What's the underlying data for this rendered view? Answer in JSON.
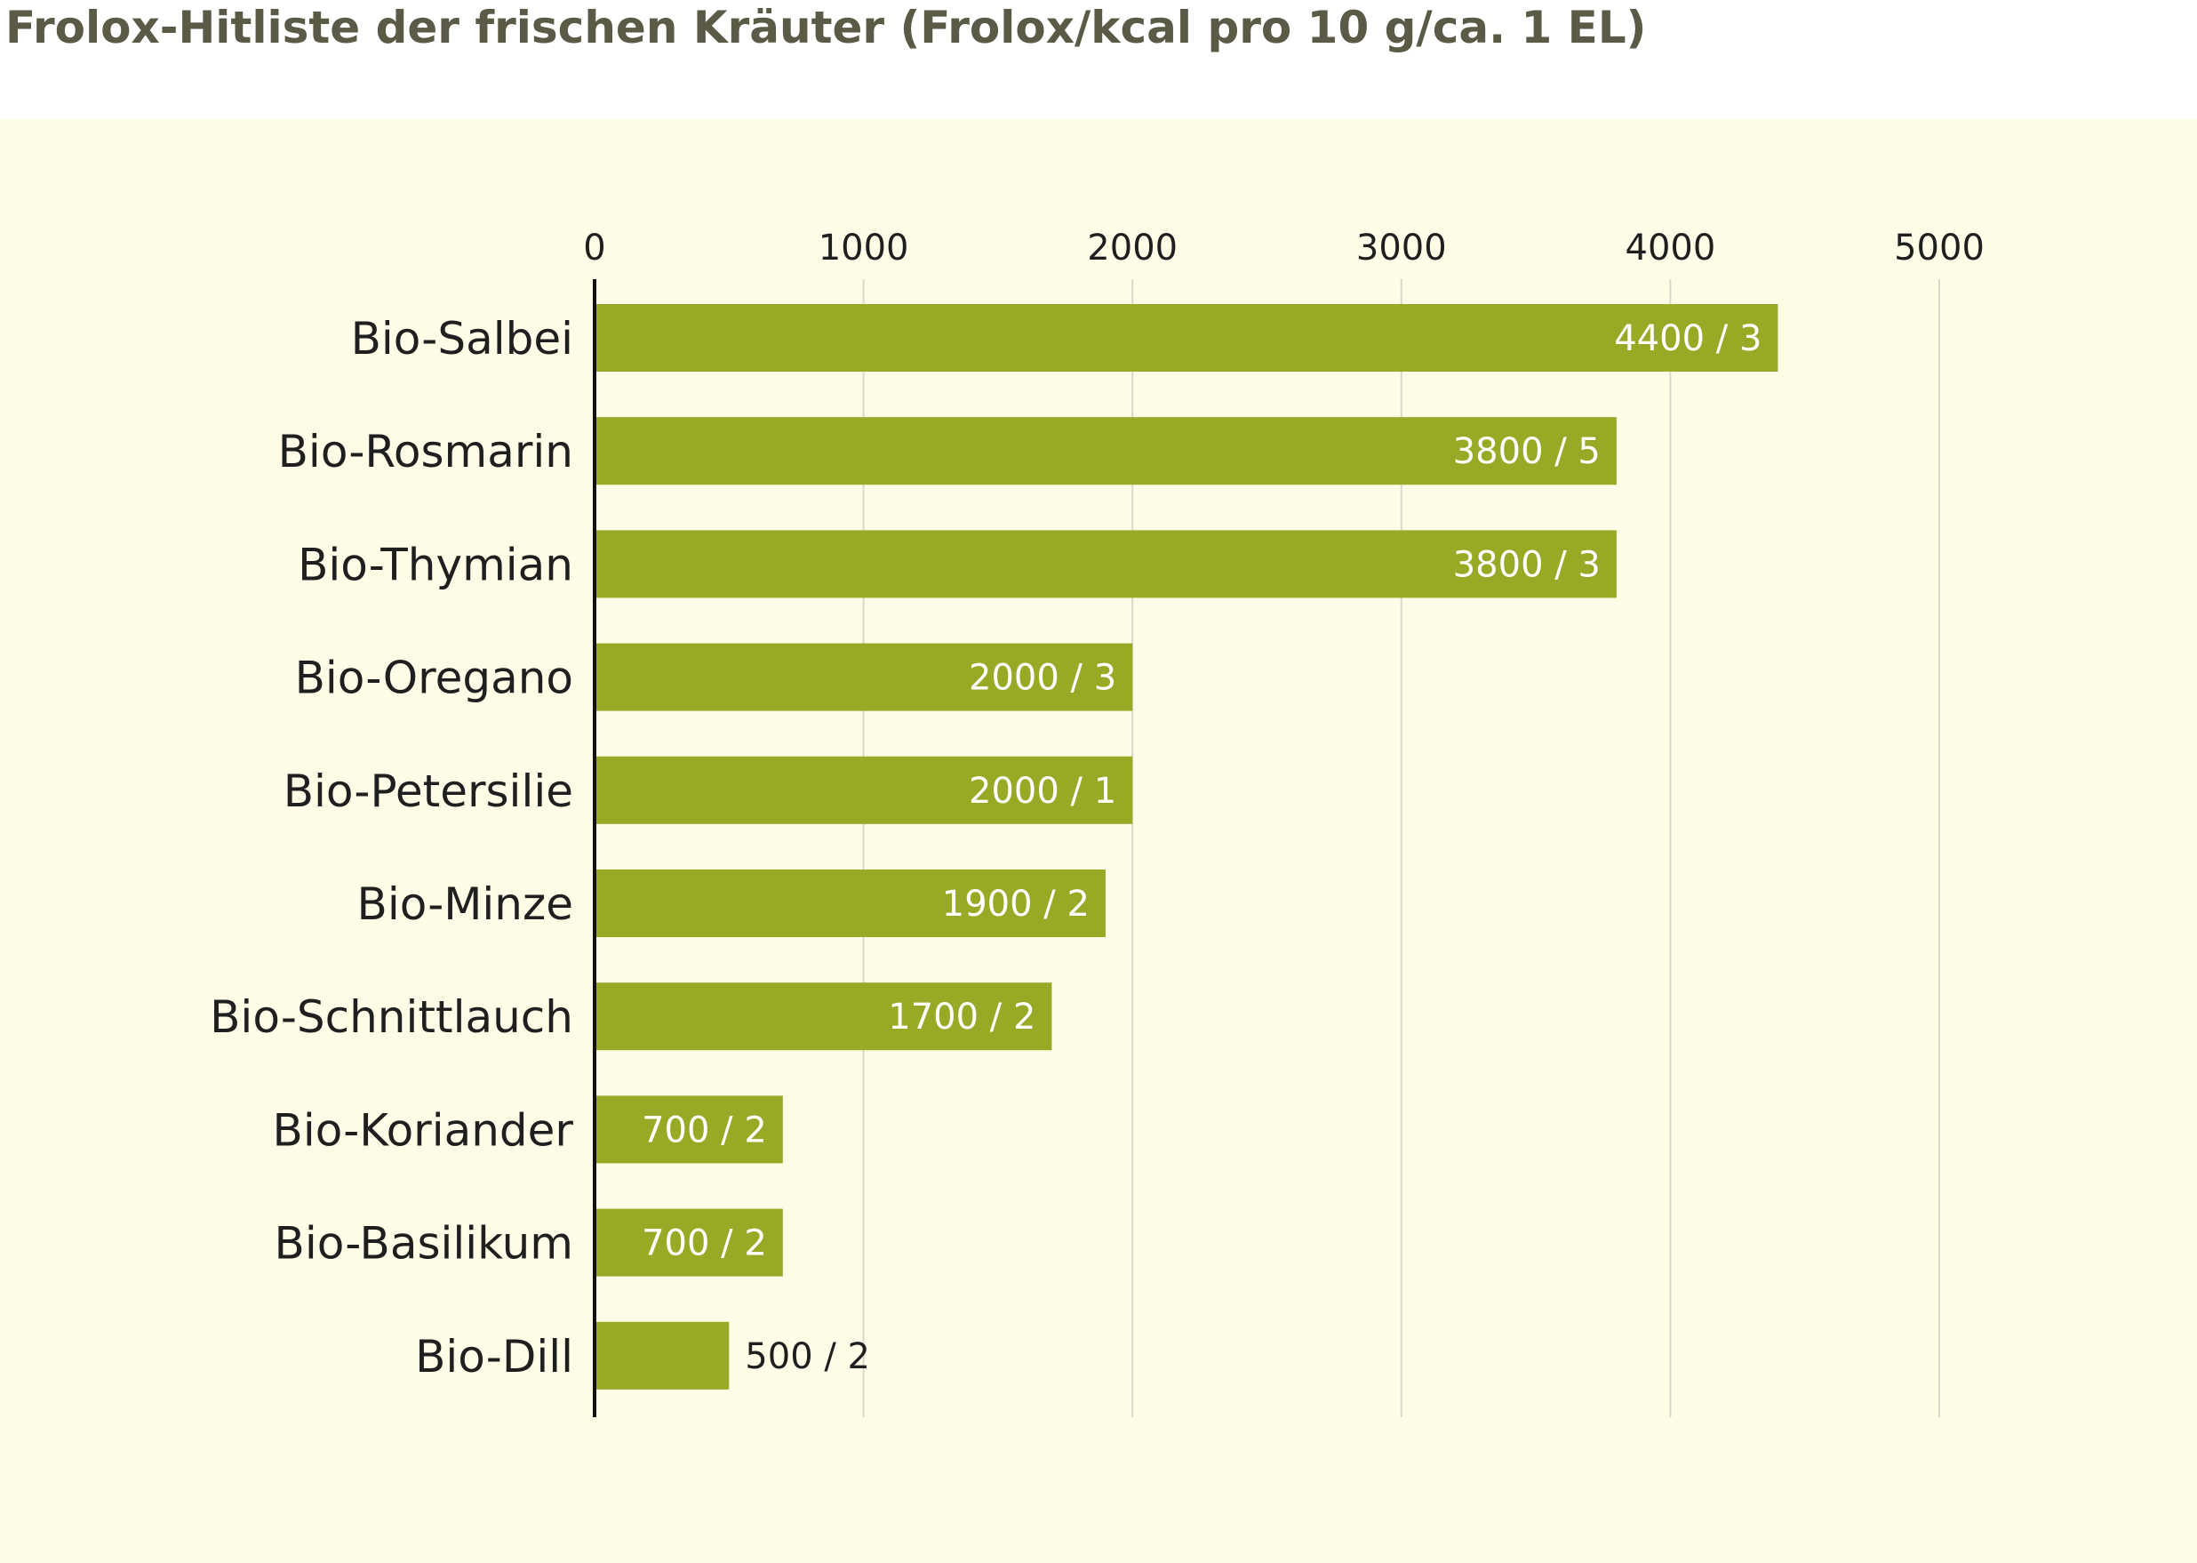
{
  "title": "Frolox-Hitliste der frischen Kräuter (Frolox/kcal pro 10 g/ca. 1 EL)",
  "colors": {
    "bar": "#98a925",
    "panel": "#fefbe7",
    "grid": "#d9d8cc",
    "title": "#5a5a46"
  },
  "chart_data": {
    "type": "bar",
    "orientation": "horizontal",
    "title": "Frolox-Hitliste der frischen Kräuter (Frolox/kcal pro 10 g/ca. 1 EL)",
    "categories": [
      "Bio-Salbei",
      "Bio-Rosmarin",
      "Bio-Thymian",
      "Bio-Oregano",
      "Bio-Petersilie",
      "Bio-Minze",
      "Bio-Schnittlauch",
      "Bio-Koriander",
      "Bio-Basilikum",
      "Bio-Dill"
    ],
    "values": [
      4400,
      3800,
      3800,
      2000,
      2000,
      1900,
      1700,
      700,
      700,
      500
    ],
    "kcal": [
      3,
      5,
      3,
      3,
      1,
      2,
      2,
      2,
      2,
      2
    ],
    "data_labels": [
      "4400 / 3",
      "3800 / 5",
      "3800 / 3",
      "2000 / 3",
      "2000 / 1",
      "1900 / 2",
      "1700 / 2",
      "700 / 2",
      "700 / 2",
      "500 / 2"
    ],
    "xlim": [
      0,
      5000
    ],
    "xticks": [
      0,
      1000,
      2000,
      3000,
      4000,
      5000
    ],
    "xtick_labels": [
      "0",
      "1000",
      "2000",
      "3000",
      "4000",
      "5000"
    ],
    "axis_position": "top",
    "grid": true,
    "legend": "none"
  }
}
